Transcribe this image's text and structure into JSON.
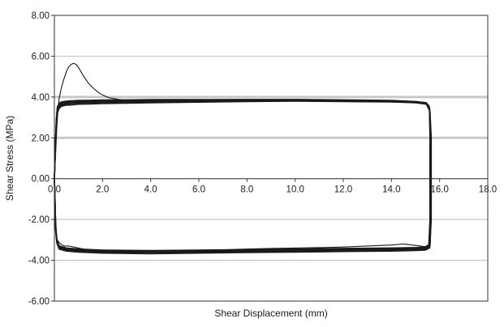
{
  "chart_data": {
    "type": "line",
    "title": "",
    "xlabel": "Shear Displacement (mm)",
    "ylabel": "Shear Stress (MPa)",
    "xlim": [
      0,
      18
    ],
    "ylim": [
      -6,
      8
    ],
    "x_ticks": [
      0,
      2,
      4,
      6,
      8,
      10,
      12,
      14,
      16,
      18
    ],
    "x_tick_labels": [
      "0.0",
      "2.0",
      "4.0",
      "6.0",
      "8.0",
      "10.0",
      "12.0",
      "14.0",
      "16.0",
      "18.0"
    ],
    "y_ticks": [
      8,
      6,
      4,
      2,
      0,
      -2,
      -4,
      -6
    ],
    "y_tick_labels": [
      "8.00",
      "6.00",
      "4.00",
      "2.00",
      "0.00",
      "-2.00",
      "-4.00",
      "-6.00"
    ],
    "grid": true,
    "highlight_gridlines": [
      4,
      2
    ],
    "colors": {
      "line": "#1a1a1a",
      "grid": "#bdbdbd",
      "grid_highlight": "#c8c8c8",
      "axis": "#333333"
    },
    "series": [
      {
        "x": [
          0,
          0.05,
          0.1,
          0.15,
          0.2,
          0.3,
          0.4,
          0.5,
          0.6,
          0.7,
          0.8,
          0.9,
          1.0,
          1.1,
          1.2,
          1.4,
          1.6,
          1.8,
          2.0,
          2.3,
          2.6,
          3.0,
          3.5,
          4.0,
          5.0,
          6.0,
          7.0,
          8.0,
          9.0,
          10.0,
          11.0,
          12.0,
          13.0,
          14.0,
          15.0,
          15.4,
          15.55,
          15.6,
          15.62,
          15.62,
          15.62,
          15.62,
          15.6,
          15.5,
          15.2,
          14.5,
          14.0,
          13.0,
          12.0,
          11.0,
          10.0,
          9.0,
          8.0,
          7.0,
          6.0,
          5.0,
          4.0,
          3.0,
          2.0,
          1.5,
          1.2,
          1.0,
          0.8,
          0.6,
          0.4,
          0.25,
          0.12,
          0.06,
          0.04,
          0.02,
          0.01,
          0.0
        ],
        "y": [
          0.0,
          1.2,
          2.5,
          3.4,
          3.95,
          4.5,
          4.9,
          5.25,
          5.48,
          5.6,
          5.65,
          5.6,
          5.45,
          5.25,
          5.05,
          4.7,
          4.45,
          4.25,
          4.1,
          3.95,
          3.9,
          3.82,
          3.78,
          3.75,
          3.74,
          3.76,
          3.78,
          3.8,
          3.82,
          3.83,
          3.82,
          3.8,
          3.78,
          3.76,
          3.74,
          3.72,
          3.6,
          3.3,
          2.0,
          0.0,
          -2.0,
          -3.0,
          -3.3,
          -3.35,
          -3.3,
          -3.2,
          -3.25,
          -3.3,
          -3.35,
          -3.38,
          -3.4,
          -3.42,
          -3.45,
          -3.48,
          -3.5,
          -3.52,
          -3.55,
          -3.55,
          -3.55,
          -3.5,
          -3.45,
          -3.4,
          -3.35,
          -3.3,
          -3.3,
          -3.2,
          -3.0,
          -2.6,
          -2.0,
          -1.0,
          -0.4,
          0.0
        ]
      },
      {
        "x": [
          0,
          0.04,
          0.08,
          0.12,
          0.2,
          0.3,
          0.5,
          0.8,
          1.0,
          1.5,
          2.0,
          3.0,
          4.0,
          6.0,
          8.0,
          10.0,
          12.0,
          14.0,
          15.0,
          15.45,
          15.6,
          15.65,
          15.65,
          15.65,
          15.6,
          15.4,
          15.0,
          14.0,
          12.0,
          10.0,
          8.0,
          6.0,
          4.0,
          2.0,
          1.0,
          0.5,
          0.2,
          0.1,
          0.05,
          0.03,
          0.01,
          0.0
        ],
        "y": [
          0.0,
          1.5,
          2.7,
          3.2,
          3.45,
          3.55,
          3.6,
          3.62,
          3.65,
          3.66,
          3.68,
          3.7,
          3.72,
          3.75,
          3.78,
          3.8,
          3.78,
          3.76,
          3.72,
          3.65,
          3.3,
          2.0,
          0.0,
          -2.0,
          -3.2,
          -3.35,
          -3.38,
          -3.4,
          -3.42,
          -3.45,
          -3.48,
          -3.5,
          -3.52,
          -3.5,
          -3.45,
          -3.4,
          -3.3,
          -3.0,
          -2.2,
          -1.2,
          -0.4,
          0.0
        ]
      },
      {
        "x": [
          0,
          0.04,
          0.08,
          0.12,
          0.2,
          0.3,
          0.5,
          0.8,
          1.0,
          1.5,
          2.0,
          3.0,
          4.0,
          6.0,
          8.0,
          10.0,
          12.0,
          14.0,
          15.0,
          15.45,
          15.58,
          15.6,
          15.6,
          15.6,
          15.55,
          15.4,
          15.0,
          14.0,
          12.0,
          10.0,
          8.0,
          6.0,
          4.0,
          2.0,
          1.0,
          0.5,
          0.2,
          0.1,
          0.05,
          0.03,
          0.01,
          0.0
        ],
        "y": [
          0.0,
          1.4,
          2.6,
          3.3,
          3.55,
          3.65,
          3.7,
          3.72,
          3.74,
          3.75,
          3.76,
          3.77,
          3.78,
          3.79,
          3.8,
          3.82,
          3.8,
          3.78,
          3.74,
          3.68,
          3.4,
          2.0,
          0.0,
          -2.0,
          -3.3,
          -3.4,
          -3.42,
          -3.44,
          -3.46,
          -3.48,
          -3.5,
          -3.53,
          -3.55,
          -3.55,
          -3.5,
          -3.45,
          -3.35,
          -3.05,
          -2.3,
          -1.3,
          -0.4,
          0.0
        ]
      },
      {
        "x": [
          0,
          0.04,
          0.08,
          0.12,
          0.2,
          0.3,
          0.5,
          0.8,
          1.0,
          1.5,
          2.0,
          3.0,
          4.0,
          6.0,
          8.0,
          10.0,
          12.0,
          14.0,
          15.0,
          15.45,
          15.58,
          15.62,
          15.62,
          15.62,
          15.58,
          15.4,
          15.0,
          14.0,
          12.0,
          10.0,
          8.0,
          6.0,
          4.0,
          2.0,
          1.0,
          0.5,
          0.2,
          0.1,
          0.05,
          0.03,
          0.01,
          0.0
        ],
        "y": [
          0.0,
          1.6,
          2.8,
          3.4,
          3.62,
          3.7,
          3.74,
          3.76,
          3.78,
          3.79,
          3.8,
          3.81,
          3.82,
          3.83,
          3.84,
          3.85,
          3.83,
          3.8,
          3.76,
          3.7,
          3.45,
          2.0,
          0.0,
          -2.0,
          -3.35,
          -3.45,
          -3.47,
          -3.5,
          -3.52,
          -3.55,
          -3.57,
          -3.6,
          -3.62,
          -3.6,
          -3.55,
          -3.5,
          -3.4,
          -3.1,
          -2.4,
          -1.4,
          -0.5,
          0.0
        ]
      },
      {
        "x": [
          0,
          0.04,
          0.08,
          0.12,
          0.2,
          0.3,
          0.5,
          0.8,
          1.0,
          1.5,
          2.0,
          3.0,
          4.0,
          6.0,
          8.0,
          10.0,
          12.0,
          14.0,
          15.0,
          15.45,
          15.58,
          15.63,
          15.63,
          15.63,
          15.58,
          15.4,
          15.0,
          14.0,
          12.0,
          10.0,
          8.0,
          6.0,
          4.0,
          2.0,
          1.0,
          0.5,
          0.2,
          0.1,
          0.05,
          0.03,
          0.01,
          0.0
        ],
        "y": [
          0.0,
          1.7,
          2.9,
          3.5,
          3.7,
          3.76,
          3.8,
          3.82,
          3.83,
          3.84,
          3.85,
          3.86,
          3.87,
          3.87,
          3.88,
          3.88,
          3.86,
          3.83,
          3.78,
          3.72,
          3.5,
          2.0,
          0.0,
          -2.0,
          -3.4,
          -3.5,
          -3.52,
          -3.55,
          -3.57,
          -3.6,
          -3.62,
          -3.65,
          -3.68,
          -3.65,
          -3.6,
          -3.55,
          -3.45,
          -3.15,
          -2.5,
          -1.5,
          -0.5,
          0.0
        ]
      },
      {
        "x": [
          0,
          0.04,
          0.08,
          0.12,
          0.2,
          0.3,
          0.5,
          0.8,
          1.0,
          1.5,
          2.0,
          3.0,
          4.0,
          6.0,
          8.0,
          10.0,
          12.0,
          14.0,
          15.0,
          15.45,
          15.58,
          15.64,
          15.64,
          15.64,
          15.6,
          15.4,
          15.0,
          14.0,
          12.0,
          10.0,
          8.0,
          6.0,
          4.0,
          2.0,
          1.0,
          0.5,
          0.2,
          0.1,
          0.05,
          0.03,
          0.01,
          0.0
        ],
        "y": [
          0.0,
          1.5,
          2.7,
          3.35,
          3.58,
          3.66,
          3.71,
          3.73,
          3.75,
          3.76,
          3.77,
          3.79,
          3.8,
          3.81,
          3.82,
          3.84,
          3.82,
          3.79,
          3.75,
          3.69,
          3.42,
          2.0,
          0.0,
          -2.0,
          -3.32,
          -3.42,
          -3.45,
          -3.47,
          -3.5,
          -3.52,
          -3.55,
          -3.58,
          -3.6,
          -3.58,
          -3.52,
          -3.48,
          -3.38,
          -3.08,
          -2.35,
          -1.35,
          -0.45,
          0.0
        ]
      },
      {
        "x": [
          0,
          0.04,
          0.08,
          0.12,
          0.2,
          0.3,
          0.5,
          0.8,
          1.0,
          1.5,
          2.0,
          3.0,
          4.0,
          6.0,
          8.0,
          10.0,
          12.0,
          14.0,
          15.0,
          15.45,
          15.58,
          15.61,
          15.61,
          15.61,
          15.56,
          15.4,
          15.0,
          14.0,
          12.0,
          10.0,
          8.0,
          6.0,
          4.0,
          2.0,
          1.0,
          0.5,
          0.2,
          0.1,
          0.05,
          0.03,
          0.01,
          0.0
        ],
        "y": [
          0.0,
          1.3,
          2.5,
          3.25,
          3.5,
          3.6,
          3.66,
          3.69,
          3.71,
          3.72,
          3.74,
          3.76,
          3.77,
          3.78,
          3.8,
          3.81,
          3.79,
          3.77,
          3.73,
          3.66,
          3.38,
          2.0,
          0.0,
          -2.0,
          -3.28,
          -3.38,
          -3.4,
          -3.43,
          -3.45,
          -3.47,
          -3.5,
          -3.52,
          -3.54,
          -3.53,
          -3.48,
          -3.42,
          -3.33,
          -3.02,
          -2.3,
          -1.3,
          -0.4,
          0.0
        ]
      }
    ]
  }
}
